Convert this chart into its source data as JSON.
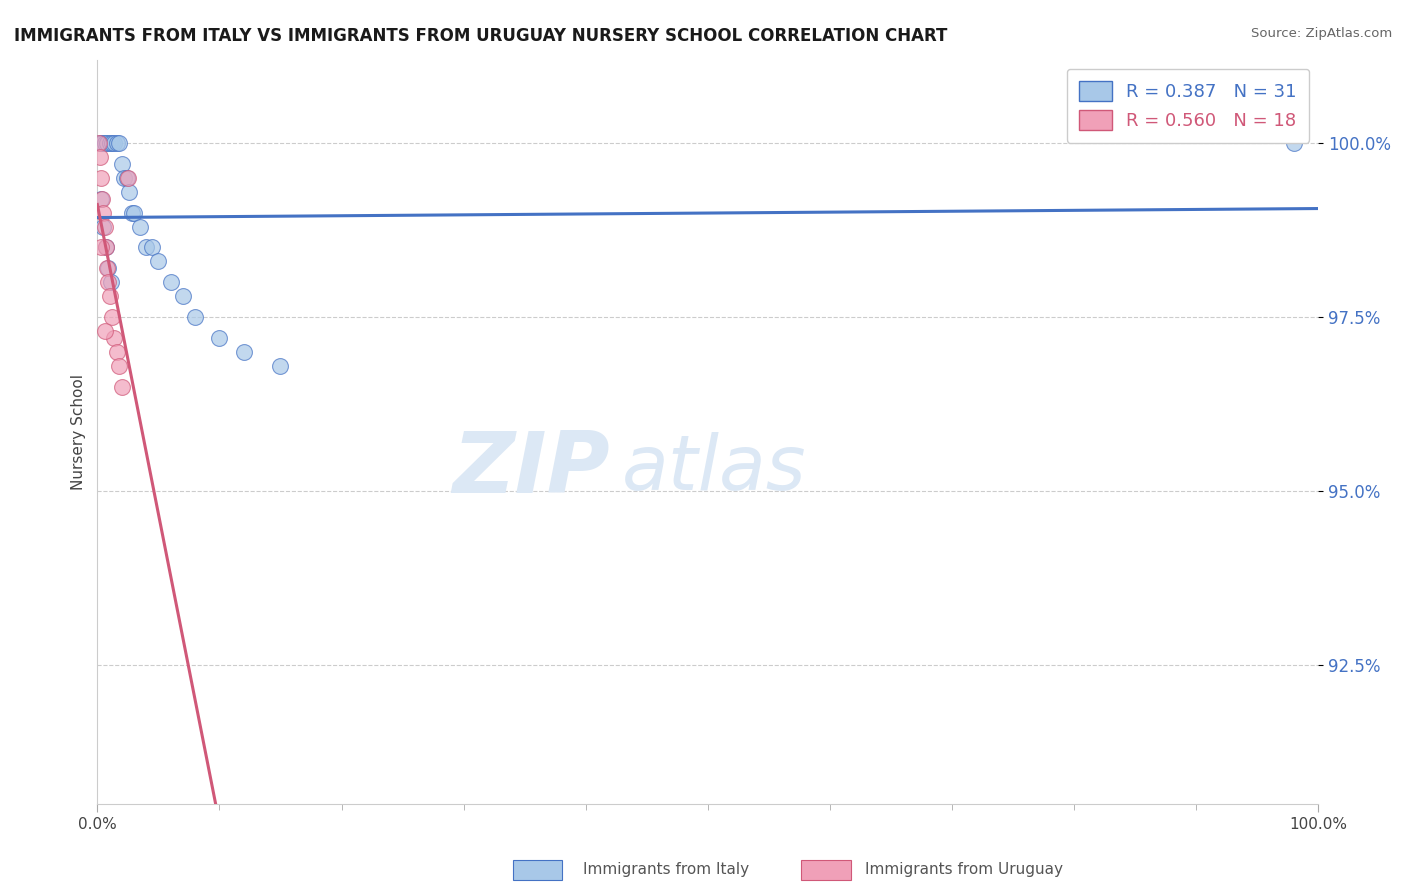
{
  "title": "IMMIGRANTS FROM ITALY VS IMMIGRANTS FROM URUGUAY NURSERY SCHOOL CORRELATION CHART",
  "source": "Source: ZipAtlas.com",
  "ylabel": "Nursery School",
  "xlim": [
    0.0,
    100.0
  ],
  "ylim": [
    90.5,
    101.2
  ],
  "yticks": [
    92.5,
    95.0,
    97.5,
    100.0
  ],
  "ytick_labels": [
    "92.5%",
    "95.0%",
    "97.5%",
    "100.0%"
  ],
  "xtick_labels": [
    "0.0%",
    "100.0%"
  ],
  "italy_color": "#a8c8e8",
  "uruguay_color": "#f0a0b8",
  "italy_line_color": "#4472c4",
  "uruguay_line_color": "#d05878",
  "legend_italy_label": "Immigrants from Italy",
  "legend_uruguay_label": "Immigrants from Uruguay",
  "R_italy": 0.387,
  "N_italy": 31,
  "R_uruguay": 0.56,
  "N_uruguay": 18,
  "italy_x": [
    0.2,
    0.4,
    0.6,
    0.8,
    1.0,
    1.2,
    1.4,
    1.6,
    1.8,
    2.0,
    2.2,
    2.4,
    2.6,
    2.8,
    3.0,
    3.5,
    4.0,
    4.5,
    5.0,
    6.0,
    7.0,
    8.0,
    10.0,
    12.0,
    15.0,
    0.3,
    0.5,
    0.7,
    0.9,
    1.1,
    98.0
  ],
  "italy_y": [
    100.0,
    100.0,
    100.0,
    100.0,
    100.0,
    100.0,
    100.0,
    100.0,
    100.0,
    99.7,
    99.5,
    99.5,
    99.3,
    99.0,
    99.0,
    98.8,
    98.5,
    98.5,
    98.3,
    98.0,
    97.8,
    97.5,
    97.2,
    97.0,
    96.8,
    99.2,
    98.8,
    98.5,
    98.2,
    98.0,
    100.0
  ],
  "uruguay_x": [
    0.1,
    0.2,
    0.3,
    0.4,
    0.5,
    0.6,
    0.7,
    0.8,
    0.9,
    1.0,
    1.2,
    1.4,
    1.6,
    1.8,
    2.0,
    2.5,
    0.3,
    0.6
  ],
  "uruguay_y": [
    100.0,
    99.8,
    99.5,
    99.2,
    99.0,
    98.8,
    98.5,
    98.2,
    98.0,
    97.8,
    97.5,
    97.2,
    97.0,
    96.8,
    96.5,
    99.5,
    98.5,
    97.3
  ],
  "background_color": "#ffffff",
  "grid_color": "#cccccc",
  "watermark_zip": "ZIP",
  "watermark_atlas": "atlas",
  "watermark_color": "#dce8f5"
}
